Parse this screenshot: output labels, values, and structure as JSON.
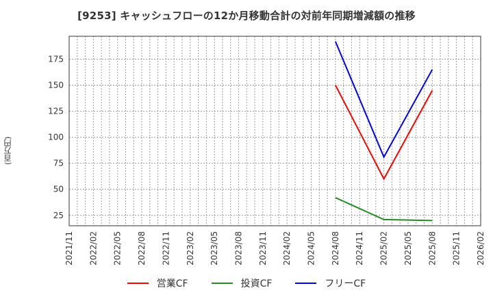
{
  "title": "[9253]  キャッシュフローの12か月移動合計の対前年同期増減額の推移",
  "y_axis_label": "(百万円)",
  "legend": [
    {
      "label": "営業CF",
      "color": "#ff0000"
    },
    {
      "label": "投資CF",
      "color": "#228b22"
    },
    {
      "label": "フリーCF",
      "color": "#0000ff"
    }
  ],
  "chart_data": {
    "type": "line",
    "title": "[9253]  キャッシュフローの12か月移動合計の対前年同期増減額の推移",
    "xlabel": "",
    "ylabel": "(百万円)",
    "x_ticks": [
      "2021/11",
      "2022/02",
      "2022/05",
      "2022/08",
      "2022/11",
      "2023/02",
      "2023/05",
      "2023/08",
      "2023/11",
      "2024/02",
      "2024/05",
      "2024/08",
      "2024/11",
      "2025/02",
      "2025/05",
      "2025/08",
      "2025/11",
      "2026/02"
    ],
    "y_ticks": [
      25,
      50,
      75,
      100,
      125,
      150,
      175
    ],
    "ylim": [
      15,
      197
    ],
    "grid": true,
    "legend_position": "bottom",
    "x": [
      "2024/08",
      "2025/02",
      "2025/08"
    ],
    "series": [
      {
        "name": "営業CF",
        "color": "#ff0000",
        "values": [
          150,
          60,
          145
        ]
      },
      {
        "name": "投資CF",
        "color": "#228b22",
        "values": [
          42,
          21,
          20
        ]
      },
      {
        "name": "フリーCF",
        "color": "#0000ff",
        "values": [
          192,
          81,
          165
        ]
      }
    ]
  }
}
